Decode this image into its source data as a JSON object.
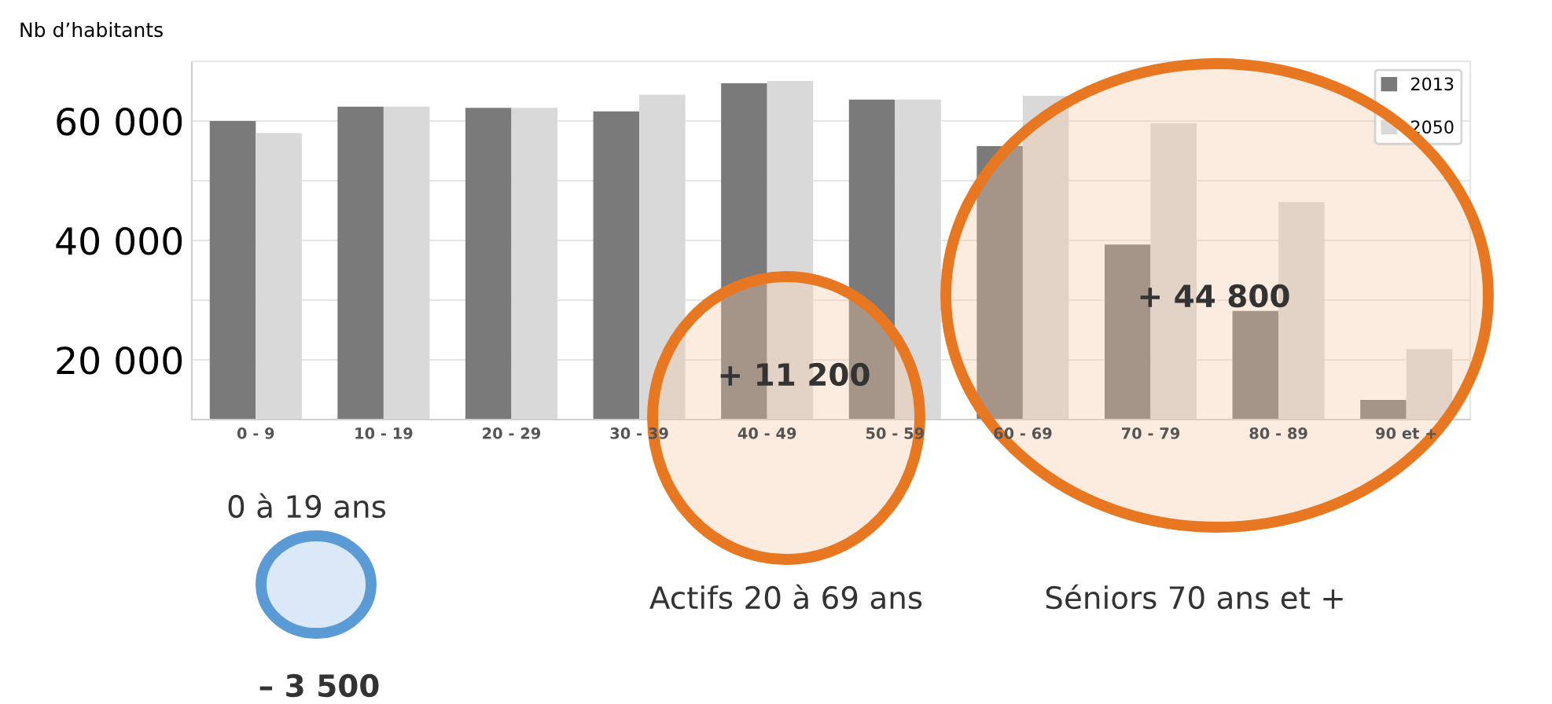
{
  "chart_data": {
    "type": "bar",
    "ylabel": "Nb d’habitants",
    "categories": [
      "0 - 9",
      "10 - 19",
      "20 - 29",
      "30 - 39",
      "40 - 49",
      "50 - 59",
      "60 - 69",
      "70 - 79",
      "80 - 89",
      "90 et +"
    ],
    "series": [
      {
        "name": "2013",
        "color": "#7a7a7a",
        "values": [
          60000,
          62400,
          62200,
          61600,
          66300,
          63600,
          55800,
          39300,
          28200,
          13300
        ]
      },
      {
        "name": "2050",
        "color": "#d9d9d9",
        "values": [
          58000,
          62400,
          62200,
          64400,
          66700,
          63600,
          64200,
          59600,
          46400,
          21800
        ]
      }
    ],
    "ylim": [
      10000,
      70000
    ],
    "yticks": [
      {
        "value": 10000,
        "label": null
      },
      {
        "value": 20000,
        "label": "20 000"
      },
      {
        "value": 30000,
        "label": null
      },
      {
        "value": 40000,
        "label": "40 000"
      },
      {
        "value": 50000,
        "label": null
      },
      {
        "value": 60000,
        "label": "60 000"
      },
      {
        "value": 70000,
        "label": null
      }
    ],
    "grid": "y",
    "legend": "top right",
    "annotations": [
      "+ 11 200",
      "+ 44 800",
      "0 à 19 ans",
      "– 3 500",
      "Actifs 20 à 69 ans",
      "Séniors 70 ans et +"
    ]
  }
}
